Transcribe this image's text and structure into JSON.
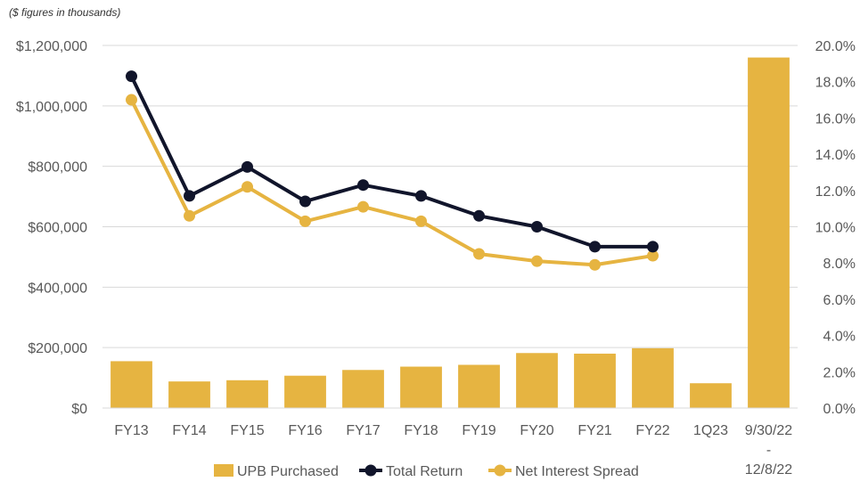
{
  "chart_data": {
    "type": "bar",
    "note": "($ figures in thousands)",
    "categories": [
      "FY13",
      "FY14",
      "FY15",
      "FY16",
      "FY17",
      "FY18",
      "FY19",
      "FY20",
      "FY21",
      "FY22",
      "1Q23",
      "9/30/22 - 12/8/22"
    ],
    "category_lines": [
      [
        "FY13"
      ],
      [
        "FY14"
      ],
      [
        "FY15"
      ],
      [
        "FY16"
      ],
      [
        "FY17"
      ],
      [
        "FY18"
      ],
      [
        "FY19"
      ],
      [
        "FY20"
      ],
      [
        "FY21"
      ],
      [
        "FY22"
      ],
      [
        "1Q23"
      ],
      [
        "9/30/22",
        "-",
        "12/8/22"
      ]
    ],
    "y_left": {
      "min": 0,
      "max": 1200000,
      "step": 200000,
      "tick_labels": [
        "$0",
        "$200,000",
        "$400,000",
        "$600,000",
        "$800,000",
        "$1,000,000",
        "$1,200,000"
      ]
    },
    "y_right": {
      "min": 0,
      "max": 20,
      "step": 2,
      "tick_labels": [
        "0.0%",
        "2.0%",
        "4.0%",
        "6.0%",
        "8.0%",
        "10.0%",
        "12.0%",
        "14.0%",
        "16.0%",
        "18.0%",
        "20.0%"
      ]
    },
    "grid": true,
    "legend_position": "bottom",
    "series": [
      {
        "name": "UPB Purchased",
        "type": "bar",
        "axis": "left",
        "color": "#E6B441",
        "values": [
          155000,
          88000,
          92000,
          107000,
          126000,
          137000,
          143000,
          182000,
          180000,
          198000,
          82000,
          1160000
        ]
      },
      {
        "name": "Total Return",
        "type": "line",
        "axis": "right",
        "color": "#11152B",
        "values": [
          18.3,
          11.7,
          13.3,
          11.4,
          12.3,
          11.7,
          10.6,
          10.0,
          8.9,
          8.9,
          null,
          null
        ]
      },
      {
        "name": "Net Interest Spread",
        "type": "line",
        "axis": "right",
        "color": "#E6B441",
        "values": [
          17.0,
          10.6,
          12.2,
          10.3,
          11.1,
          10.3,
          8.5,
          8.1,
          7.9,
          8.4,
          null,
          null
        ]
      }
    ]
  }
}
